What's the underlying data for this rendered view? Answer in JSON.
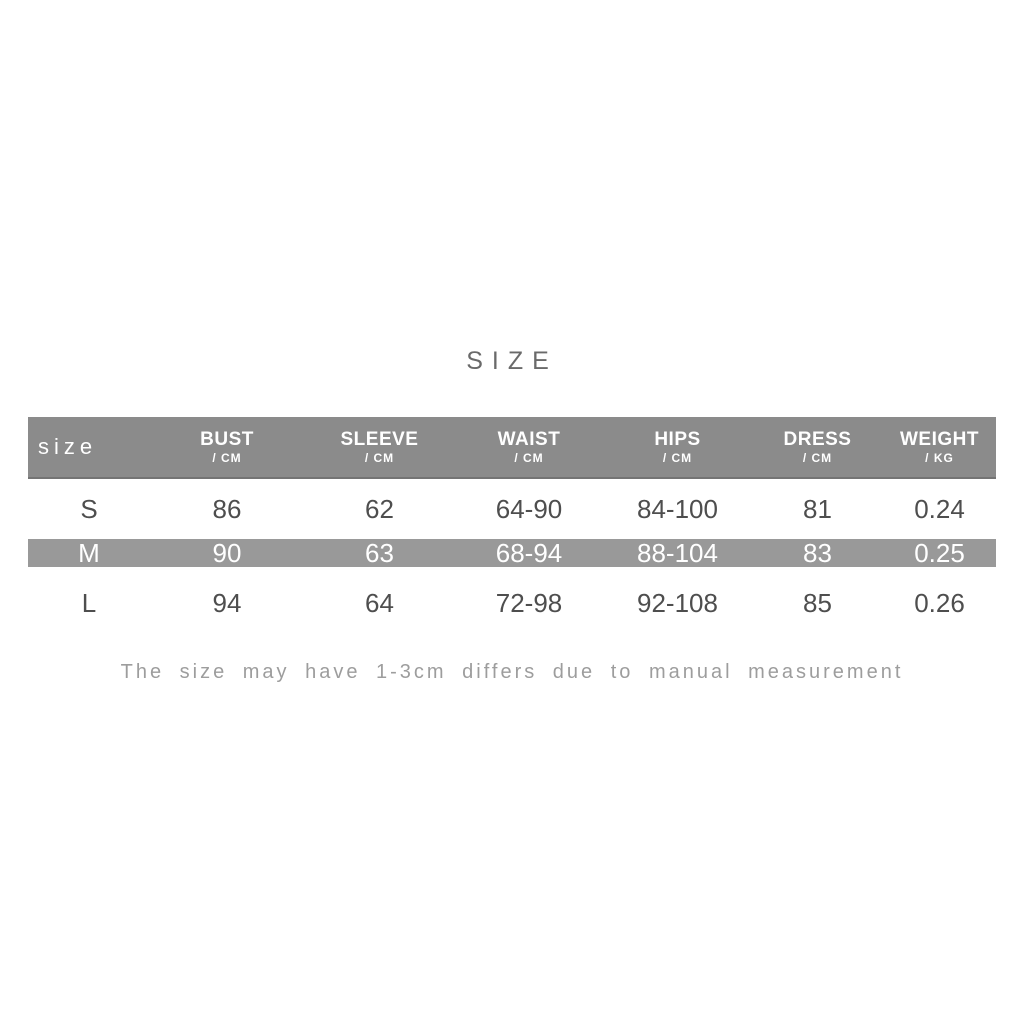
{
  "chart_data": {
    "type": "table",
    "title": "SIZE",
    "row_header_label": "size",
    "columns": [
      {
        "label": "BUST",
        "unit": "/ CM"
      },
      {
        "label": "SLEEVE",
        "unit": "/ CM"
      },
      {
        "label": "WAIST",
        "unit": "/ CM"
      },
      {
        "label": "HIPS",
        "unit": "/ CM"
      },
      {
        "label": "DRESS",
        "unit": "/ CM"
      },
      {
        "label": "WEIGHT",
        "unit": "/ KG"
      }
    ],
    "rows": [
      {
        "size": "S",
        "values": [
          "86",
          "62",
          "64-90",
          "84-100",
          "81",
          "0.24"
        ],
        "highlighted": false
      },
      {
        "size": "M",
        "values": [
          "90",
          "63",
          "68-94",
          "88-104",
          "83",
          "0.25"
        ],
        "highlighted": true
      },
      {
        "size": "L",
        "values": [
          "94",
          "64",
          "72-98",
          "92-108",
          "85",
          "0.26"
        ],
        "highlighted": false
      }
    ],
    "note": "The size may have 1-3cm differs due to manual measurement",
    "layout_hints": {
      "highlighted_row": "M",
      "header_style": "gray-band-white-text",
      "grid": "off"
    }
  },
  "colors": {
    "header_bg": "#8b8b8b",
    "header_edge": "#747474",
    "highlight_bg": "#999999",
    "title_text": "#6a6a6a",
    "body_text": "#4e4e4e",
    "note_text": "#9d9d9d",
    "header_text": "#ffffff"
  }
}
